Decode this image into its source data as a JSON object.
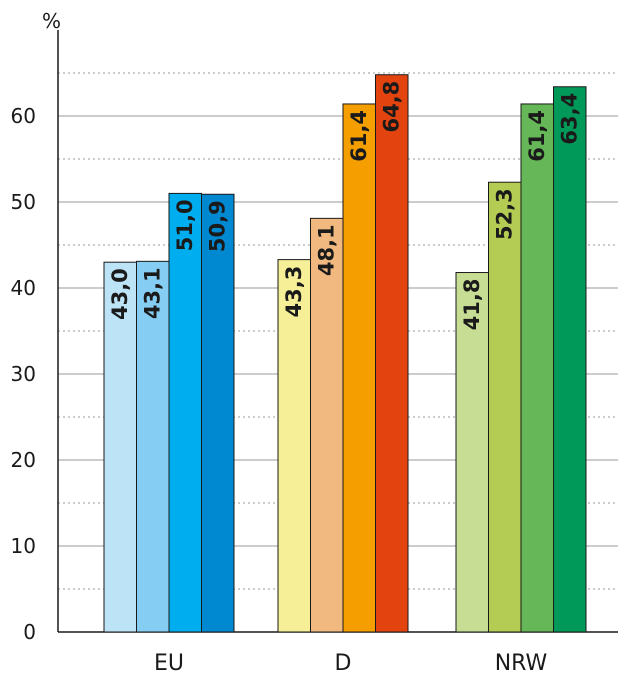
{
  "chart_data": {
    "type": "bar",
    "ylabel": "%",
    "ylim": [
      0,
      65
    ],
    "yticks": [
      0,
      10,
      20,
      30,
      40,
      50,
      60
    ],
    "grid": true,
    "categories": [
      "EU",
      "D",
      "NRW"
    ],
    "groups": [
      {
        "category": "EU",
        "values": [
          43.0,
          43.1,
          51.0,
          50.9
        ],
        "labels": [
          "43,0",
          "43,1",
          "51,0",
          "50,9"
        ],
        "colors": [
          "#bde3f7",
          "#86cdf3",
          "#00aeef",
          "#0088d1"
        ]
      },
      {
        "category": "D",
        "values": [
          43.3,
          48.1,
          61.4,
          64.8
        ],
        "labels": [
          "43,3",
          "48,1",
          "61,4",
          "64,8"
        ],
        "colors": [
          "#f7ef97",
          "#f1b97f",
          "#f49e00",
          "#e3440f"
        ]
      },
      {
        "category": "NRW",
        "values": [
          41.8,
          52.3,
          61.4,
          63.4
        ],
        "labels": [
          "41,8",
          "52,3",
          "61,4",
          "63,4"
        ],
        "colors": [
          "#c7dd94",
          "#b4cc53",
          "#66b757",
          "#00995a"
        ]
      }
    ]
  }
}
